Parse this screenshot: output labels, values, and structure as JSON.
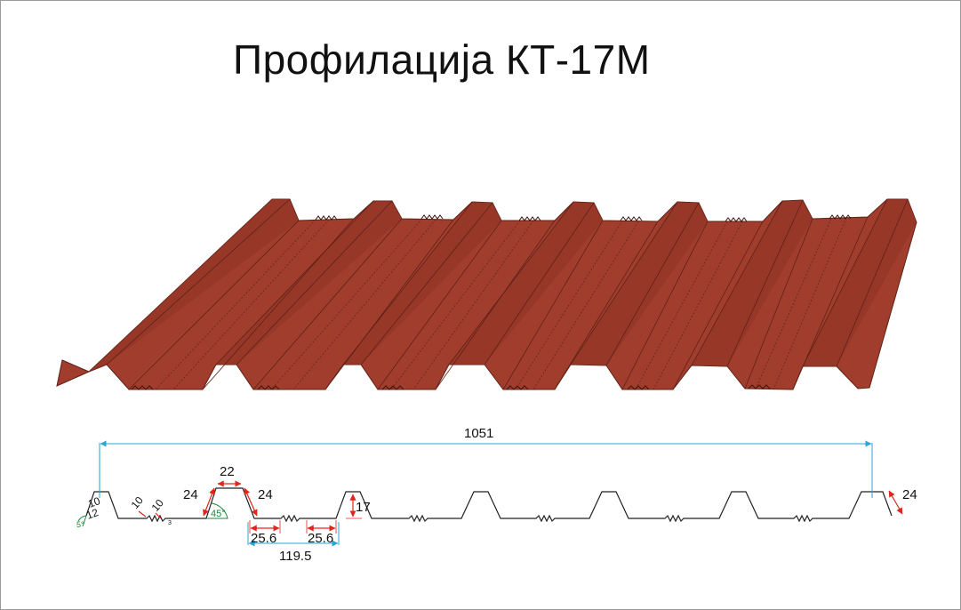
{
  "title": "Профилација КТ-17М",
  "colors": {
    "sheet": "#a13d2d",
    "sheet_line": "#5e2117",
    "profile": "#222222",
    "dimension_blue": "#2aa6d6",
    "dimension_red": "#e0261b",
    "angle_green": "#1b8a3a"
  },
  "dimensions": {
    "total_width": "1051",
    "pitch": "119.5",
    "crest_top": "22",
    "web_left": "24",
    "web_right": "24",
    "height": "17",
    "valley_a": "25.6",
    "valley_b": "25.6",
    "edge_web": "24",
    "lip_a": "10",
    "lip_b": "12",
    "stiffener_a": "10",
    "stiffener_b": "10",
    "stiffener_depth": "3",
    "angle_web": "45°",
    "angle_edge": "5°"
  }
}
